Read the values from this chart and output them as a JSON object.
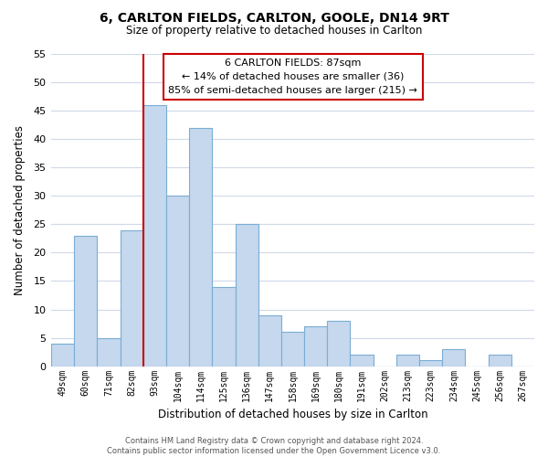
{
  "title": "6, CARLTON FIELDS, CARLTON, GOOLE, DN14 9RT",
  "subtitle": "Size of property relative to detached houses in Carlton",
  "xlabel": "Distribution of detached houses by size in Carlton",
  "ylabel": "Number of detached properties",
  "categories": [
    "49sqm",
    "60sqm",
    "71sqm",
    "82sqm",
    "93sqm",
    "104sqm",
    "114sqm",
    "125sqm",
    "136sqm",
    "147sqm",
    "158sqm",
    "169sqm",
    "180sqm",
    "191sqm",
    "202sqm",
    "213sqm",
    "223sqm",
    "234sqm",
    "245sqm",
    "256sqm",
    "267sqm"
  ],
  "values": [
    4,
    23,
    5,
    24,
    46,
    30,
    42,
    14,
    25,
    9,
    6,
    7,
    8,
    2,
    0,
    2,
    1,
    3,
    0,
    2,
    0
  ],
  "bar_color": "#c5d8ed",
  "bar_edge_color": "#7aadd4",
  "property_line_index": 4,
  "property_line_color": "#cc0000",
  "annotation_title": "6 CARLTON FIELDS: 87sqm",
  "annotation_line1": "← 14% of detached houses are smaller (36)",
  "annotation_line2": "85% of semi-detached houses are larger (215) →",
  "annotation_box_color": "#ffffff",
  "annotation_box_edgecolor": "#cc0000",
  "ylim": [
    0,
    55
  ],
  "yticks": [
    0,
    5,
    10,
    15,
    20,
    25,
    30,
    35,
    40,
    45,
    50,
    55
  ],
  "footer1": "Contains HM Land Registry data © Crown copyright and database right 2024.",
  "footer2": "Contains public sector information licensed under the Open Government Licence v3.0.",
  "background_color": "#ffffff",
  "grid_color": "#d0d8e8"
}
